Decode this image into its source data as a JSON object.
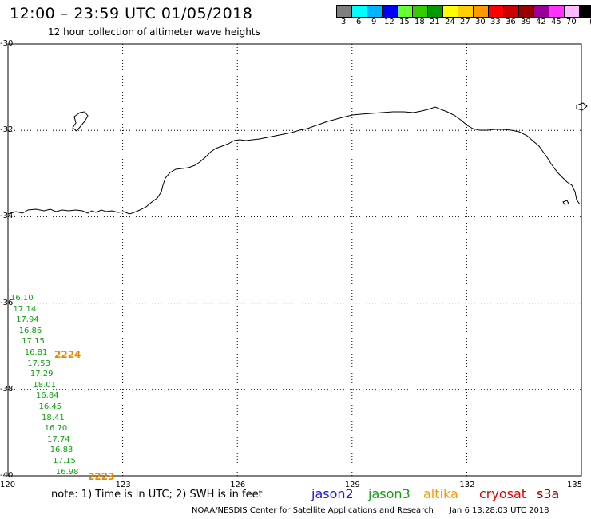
{
  "header": {
    "title": "12:00 – 23:59 UTC 01/05/2018",
    "subtitle": "12 hour collection of altimeter wave heights"
  },
  "legend": {
    "unit": "(ft)",
    "swatches": [
      {
        "color": "#7f7f7f",
        "label": "3"
      },
      {
        "color": "#00ffff",
        "label": "6"
      },
      {
        "color": "#00b4ff",
        "label": "9"
      },
      {
        "color": "#0000ff",
        "label": "12"
      },
      {
        "color": "#66ff33",
        "label": "15"
      },
      {
        "color": "#33cc00",
        "label": "18"
      },
      {
        "color": "#009900",
        "label": "21"
      },
      {
        "color": "#ffff00",
        "label": "24"
      },
      {
        "color": "#ffd000",
        "label": "27"
      },
      {
        "color": "#ff9900",
        "label": "30"
      },
      {
        "color": "#ff0000",
        "label": "33"
      },
      {
        "color": "#cc0000",
        "label": "36"
      },
      {
        "color": "#990000",
        "label": "39"
      },
      {
        "color": "#990099",
        "label": "42"
      },
      {
        "color": "#ff33ff",
        "label": "45"
      },
      {
        "color": "#ffbbff",
        "label": "70"
      },
      {
        "color": "#000000",
        "label": ""
      }
    ]
  },
  "map": {
    "lon_min": 120,
    "lon_max": 135,
    "lat_min": -40,
    "lat_max": -30,
    "lat_labels": [
      "-30",
      "-32",
      "-34",
      "-36",
      "-38",
      "-40"
    ],
    "lon_labels": [
      "120",
      "123",
      "126",
      "129",
      "132",
      "135"
    ]
  },
  "observations": {
    "swh_values": [
      "16.10",
      "17.14",
      "17.94",
      "16.86",
      "17.15",
      "16.81",
      "17.53",
      "17.29",
      "18.01",
      "16.84",
      "16.45",
      "18.41",
      "16.70",
      "17.74",
      "16.83",
      "17.15",
      "16.98"
    ],
    "times": [
      "2224",
      "2223"
    ]
  },
  "footer": {
    "note": "note: 1) Time is in UTC; 2) SWH is in feet",
    "satellites": [
      {
        "name": "jason2",
        "color": "#1a1adf"
      },
      {
        "name": "jason3",
        "color": "#12a012"
      },
      {
        "name": "altika",
        "color": "#ff9a00"
      },
      {
        "name": "cryosat",
        "color": "#dd0000"
      },
      {
        "name": "s3a",
        "color": "#990000"
      }
    ],
    "credit": "NOAA/NESDIS Center for Satellite Applications and Research",
    "timestamp": "Jan  6 13:28:03 UTC 2018"
  }
}
